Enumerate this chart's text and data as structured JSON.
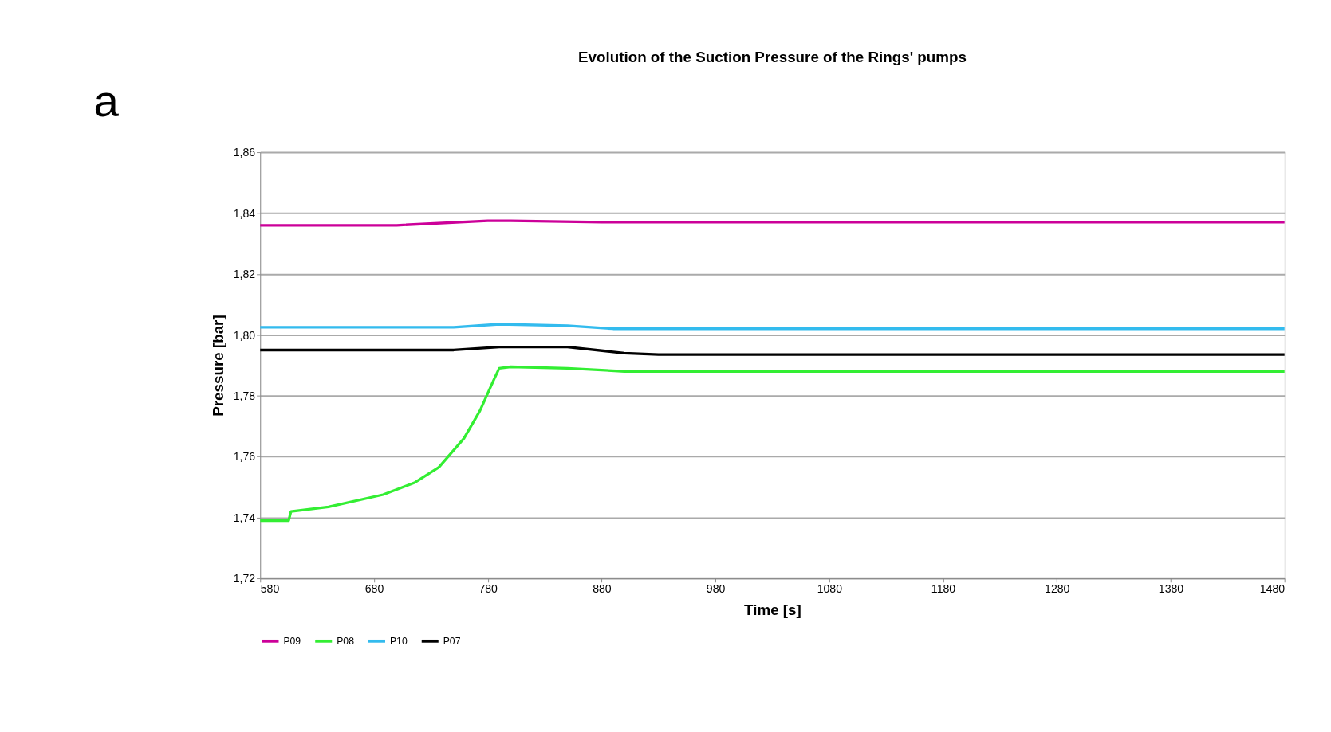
{
  "chart_data": {
    "type": "line",
    "title": "Evolution of the Suction Pressure of the Rings' pumps",
    "xlabel": "Time [s]",
    "ylabel": "Pressure [bar]",
    "annotations": [
      "a"
    ],
    "xlim": [
      580,
      1480
    ],
    "xticks": [
      580,
      680,
      780,
      880,
      980,
      1080,
      1180,
      1280,
      1380,
      1480
    ],
    "ylim": [
      1.72,
      1.86
    ],
    "yticks": [
      {
        "value": 1.72,
        "label": "1,72"
      },
      {
        "value": 1.74,
        "label": "1,74"
      },
      {
        "value": 1.76,
        "label": "1,76"
      },
      {
        "value": 1.78,
        "label": "1,78"
      },
      {
        "value": 1.8,
        "label": "1,80"
      },
      {
        "value": 1.82,
        "label": "1,82"
      },
      {
        "value": 1.84,
        "label": "1,84"
      },
      {
        "value": 1.86,
        "label": "1,86"
      }
    ],
    "grid": "y",
    "legend": "bottom",
    "marker": "none",
    "line_style": "solid",
    "series": [
      {
        "name": "P09",
        "color": "#cc0099",
        "x": [
          580,
          700,
          780,
          800,
          880,
          1480
        ],
        "values": [
          1.836,
          1.836,
          1.8375,
          1.8375,
          1.837,
          1.837
        ]
      },
      {
        "name": "P08",
        "color": "#33ee33",
        "x": [
          580,
          605,
          607,
          640,
          688,
          716,
          737,
          759,
          773,
          785,
          790,
          800,
          850,
          900,
          1000,
          1480
        ],
        "values": [
          1.739,
          1.739,
          1.742,
          1.7435,
          1.7475,
          1.7515,
          1.7565,
          1.766,
          1.775,
          1.785,
          1.789,
          1.7895,
          1.789,
          1.788,
          1.788,
          1.788
        ]
      },
      {
        "name": "P10",
        "color": "#33bbee",
        "x": [
          580,
          750,
          790,
          850,
          890,
          1480
        ],
        "values": [
          1.8025,
          1.8025,
          1.8035,
          1.803,
          1.802,
          1.802
        ]
      },
      {
        "name": "P07",
        "color": "#000000",
        "x": [
          580,
          750,
          790,
          850,
          900,
          930,
          1480
        ],
        "values": [
          1.795,
          1.795,
          1.796,
          1.796,
          1.794,
          1.7935,
          1.7935
        ]
      }
    ]
  }
}
